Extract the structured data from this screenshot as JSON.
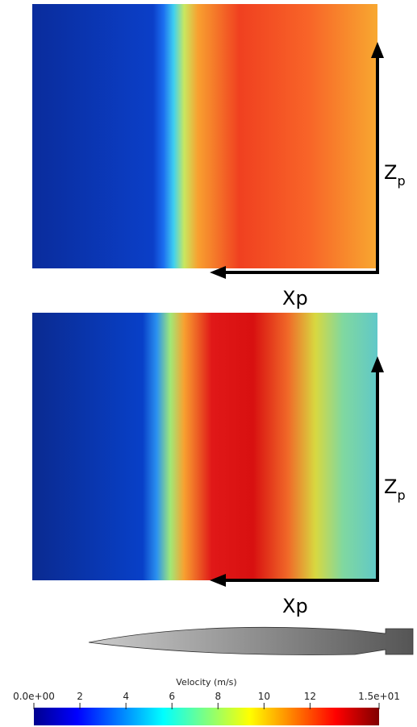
{
  "panels": [
    {
      "x_label": "Xp",
      "z_label": "Z",
      "z_sub": "p"
    },
    {
      "x_label": "Xp",
      "z_label": "Z",
      "z_sub": "p"
    }
  ],
  "colorbar": {
    "title": "Velocity (m/s)",
    "lim": [
      0,
      15
    ],
    "ticks": [
      {
        "value": 0,
        "label": "0.0e+00"
      },
      2,
      4,
      6,
      8,
      10,
      12,
      {
        "value": 15,
        "label": "1.5e+01"
      }
    ]
  }
}
